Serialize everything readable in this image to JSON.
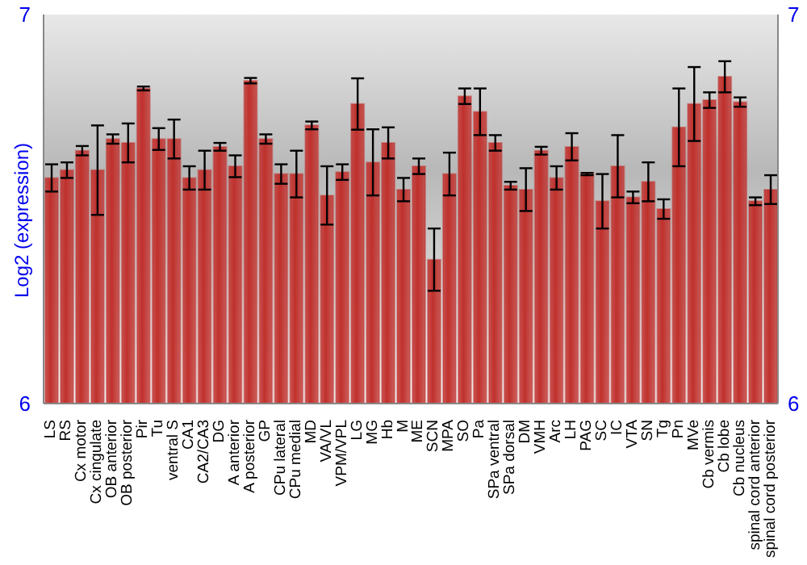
{
  "chart_data": {
    "type": "bar",
    "ylabel": "Log2 (expression)",
    "categories": [
      "LS",
      "RS",
      "Cx motor",
      "Cx cingulate",
      "OB anterior",
      "OB posterior",
      "Pir",
      "Tu",
      "ventral S",
      "CA1",
      "CA2/CA3",
      "DG",
      "A anterior",
      "A posterior",
      "GP",
      "CPu lateral",
      "CPu medial",
      "MD",
      "VA/VL",
      "VPM/VPL",
      "LG",
      "MG",
      "Hb",
      "M",
      "ME",
      "SCN",
      "MPA",
      "SO",
      "Pa",
      "SPa ventral",
      "SPa dorsal",
      "DM",
      "VMH",
      "Arc",
      "LH",
      "PAG",
      "SC",
      "IC",
      "VTA",
      "SN",
      "Tg",
      "Pn",
      "MVe",
      "Cb vermis",
      "Cb lobe",
      "Cb nucleus",
      "spinal cord anterior",
      "spinal cord posterior"
    ],
    "values": [
      6.58,
      6.6,
      6.65,
      6.6,
      6.68,
      6.67,
      6.81,
      6.68,
      6.68,
      6.58,
      6.6,
      6.66,
      6.61,
      6.83,
      6.68,
      6.59,
      6.59,
      6.715,
      6.535,
      6.595,
      6.77,
      6.62,
      6.67,
      6.55,
      6.61,
      6.37,
      6.59,
      6.79,
      6.75,
      6.67,
      6.56,
      6.55,
      6.65,
      6.58,
      6.66,
      6.59,
      6.52,
      6.61,
      6.53,
      6.57,
      6.5,
      6.71,
      6.77,
      6.78,
      6.84,
      6.775,
      6.52,
      6.55
    ],
    "errors": [
      0.035,
      0.02,
      0.012,
      0.115,
      0.012,
      0.05,
      0.005,
      0.028,
      0.05,
      0.03,
      0.05,
      0.01,
      0.028,
      0.007,
      0.012,
      0.025,
      0.06,
      0.01,
      0.075,
      0.02,
      0.066,
      0.085,
      0.04,
      0.03,
      0.02,
      0.08,
      0.055,
      0.02,
      0.06,
      0.02,
      0.01,
      0.055,
      0.01,
      0.03,
      0.035,
      0.003,
      0.07,
      0.08,
      0.015,
      0.05,
      0.025,
      0.1,
      0.095,
      0.02,
      0.04,
      0.012,
      0.01,
      0.037
    ],
    "color": "#c0302c",
    "ylim": [
      6,
      7
    ],
    "yticks": [
      6,
      7
    ],
    "y2lim": [
      6,
      7
    ],
    "y2ticks": [
      6,
      7
    ],
    "grid": false
  }
}
